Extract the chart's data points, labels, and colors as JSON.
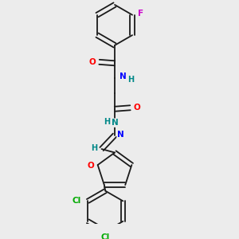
{
  "background_color": "#ececec",
  "bond_color": "#1a1a1a",
  "atom_colors": {
    "O": "#ff0000",
    "N": "#0000ff",
    "N2": "#008888",
    "F": "#cc00cc",
    "Cl": "#00aa00",
    "H": "#008888",
    "C": "#1a1a1a"
  },
  "figsize": [
    3.0,
    3.0
  ],
  "dpi": 100
}
